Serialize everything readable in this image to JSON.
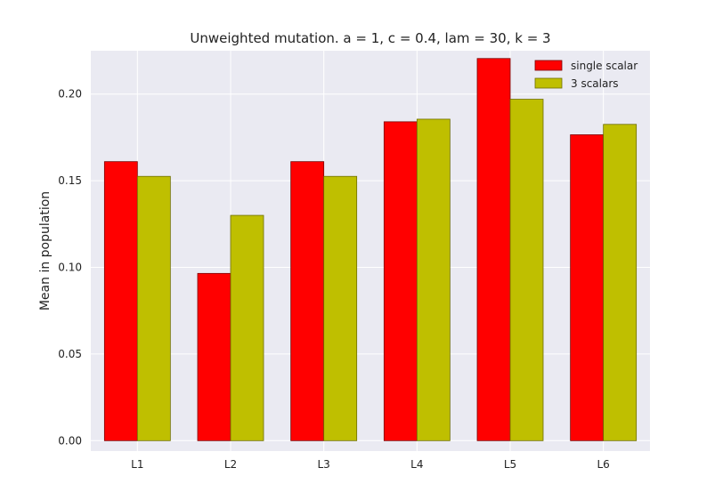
{
  "chart_data": {
    "type": "bar",
    "title": "Unweighted mutation. a = 1, c = 0.4, lam = 30, k = 3",
    "xlabel": "",
    "ylabel": "Mean in population",
    "categories": [
      "L1",
      "L2",
      "L3",
      "L4",
      "L5",
      "L6"
    ],
    "series": [
      {
        "name": "single scalar",
        "values": [
          0.161,
          0.0965,
          0.161,
          0.184,
          0.2205,
          0.1765
        ],
        "color": "#ff0000"
      },
      {
        "name": "3 scalars",
        "values": [
          0.1525,
          0.13,
          0.1525,
          0.1855,
          0.197,
          0.1825
        ],
        "color": "#bfbf00"
      }
    ],
    "ylim": [
      -0.006,
      0.225
    ],
    "yticks": [
      0.0,
      0.05,
      0.1,
      0.15,
      0.2
    ],
    "ytick_labels": [
      "0.00",
      "0.05",
      "0.10",
      "0.15",
      "0.20"
    ],
    "grid": true,
    "background_color": "#eaeaf2",
    "legend_position": "top-right"
  }
}
